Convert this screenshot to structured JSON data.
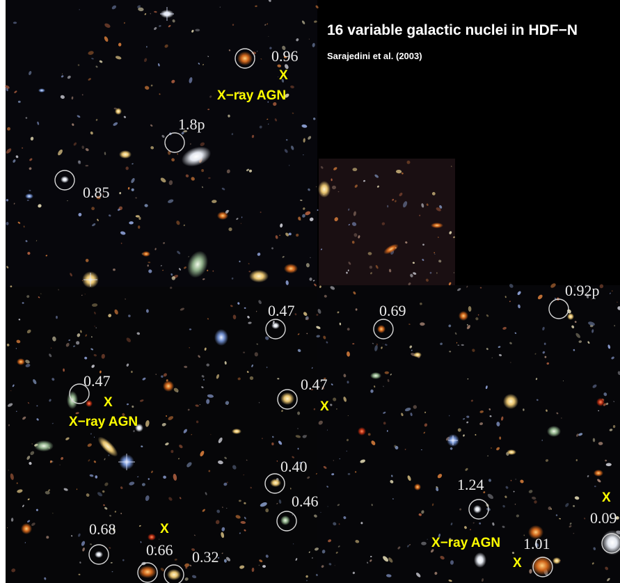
{
  "title": "16 variable galactic nuclei in HDF−N",
  "subtitle": "Sarajedini et al. (2003)",
  "colors": {
    "sky": "#07070c",
    "annotation_text": "#ffffff",
    "xray_marker": "#ffff00"
  },
  "redshift_labels": [
    "0.96",
    "1.8p",
    "0.85",
    "0.47",
    "0.69",
    "0.92p",
    "0.47",
    "0.47",
    "0.40",
    "0.46",
    "1.24",
    "0.09",
    "0.68",
    "0.66",
    "0.32",
    "1.01"
  ],
  "xray_marks": [
    "X",
    "X",
    "X",
    "X",
    "X",
    "X",
    "X"
  ],
  "xray_agn_label": "X−ray AGN"
}
